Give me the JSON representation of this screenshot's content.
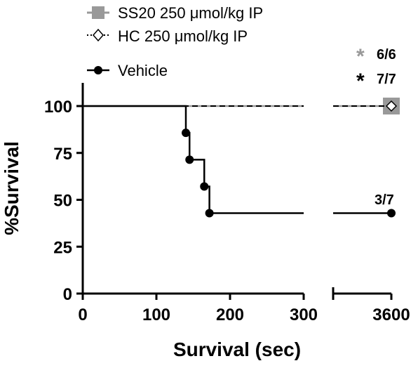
{
  "chart_data": {
    "type": "line",
    "xlabel": "Survival (sec)",
    "ylabel": "%Survival",
    "ylim": [
      0,
      100
    ],
    "x_ticks_left": [
      "0",
      "100",
      "200",
      "300"
    ],
    "x_ticks_right": [
      "3600"
    ],
    "y_ticks": [
      "0",
      "25",
      "50",
      "75",
      "100"
    ],
    "x_segments": [
      [
        0,
        300
      ],
      [
        3600,
        3600
      ]
    ],
    "legend_position": "top-left",
    "series": [
      {
        "name": "SS20 250 μmol/kg IP",
        "color": "#999999",
        "style": "solid",
        "marker": "square",
        "steps": [
          [
            0,
            100
          ],
          [
            300,
            100
          ],
          [
            3600,
            100
          ]
        ],
        "points": [
          [
            3600,
            100
          ]
        ]
      },
      {
        "name": "HC 250 μmol/kg IP",
        "color": "#000000",
        "style": "dashed",
        "marker": "diamond",
        "steps": [
          [
            0,
            100
          ],
          [
            300,
            100
          ],
          [
            3600,
            100
          ]
        ],
        "points": [
          [
            3600,
            100
          ]
        ]
      },
      {
        "name": "Vehicle",
        "color": "#000000",
        "style": "solid",
        "marker": "circle",
        "steps": [
          [
            0,
            100
          ],
          [
            140,
            85.7
          ],
          [
            145,
            71.4
          ],
          [
            165,
            57.1
          ],
          [
            172,
            42.9
          ],
          [
            300,
            42.9
          ],
          [
            3600,
            42.9
          ]
        ],
        "points": [
          [
            140,
            85.7
          ],
          [
            145,
            71.4
          ],
          [
            165,
            57.1
          ],
          [
            172,
            42.9
          ],
          [
            3600,
            42.9
          ]
        ]
      }
    ],
    "annotations": [
      {
        "star": "*",
        "text": "6/6",
        "color": "#999999"
      },
      {
        "star": "*",
        "text": "7/7",
        "color": "#000000"
      },
      {
        "text": "3/7",
        "color": "#000000"
      }
    ]
  }
}
